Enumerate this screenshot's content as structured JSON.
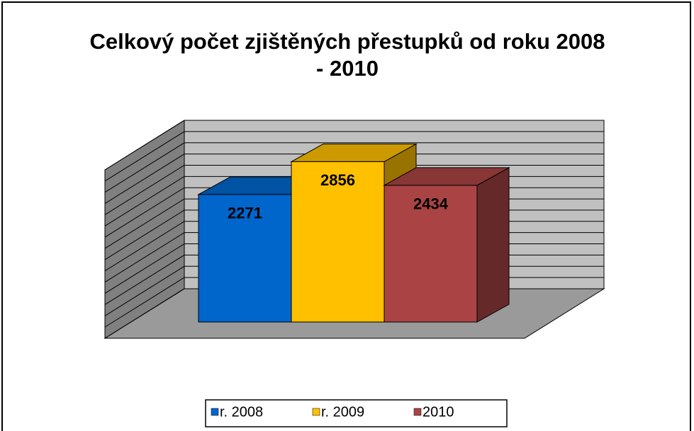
{
  "chart_data": {
    "type": "bar3d",
    "title": "Celkový počet zjištěných přestupků od roku 2008 - 2010",
    "series": [
      {
        "name": "r. 2008",
        "color": "#0066cc",
        "values": [
          2271
        ]
      },
      {
        "name": "r. 2009",
        "color": "#ffc000",
        "values": [
          2856
        ]
      },
      {
        "name": "2010",
        "color": "#aa4444",
        "values": [
          2434
        ]
      }
    ],
    "ylim": [
      0,
      3000
    ],
    "yticks": [
      0,
      200,
      400,
      600,
      800,
      1000,
      1200,
      1400,
      1600,
      1800,
      2000,
      2200,
      2400,
      2600,
      2800,
      3000
    ],
    "grid": true,
    "legend": "bottom"
  }
}
